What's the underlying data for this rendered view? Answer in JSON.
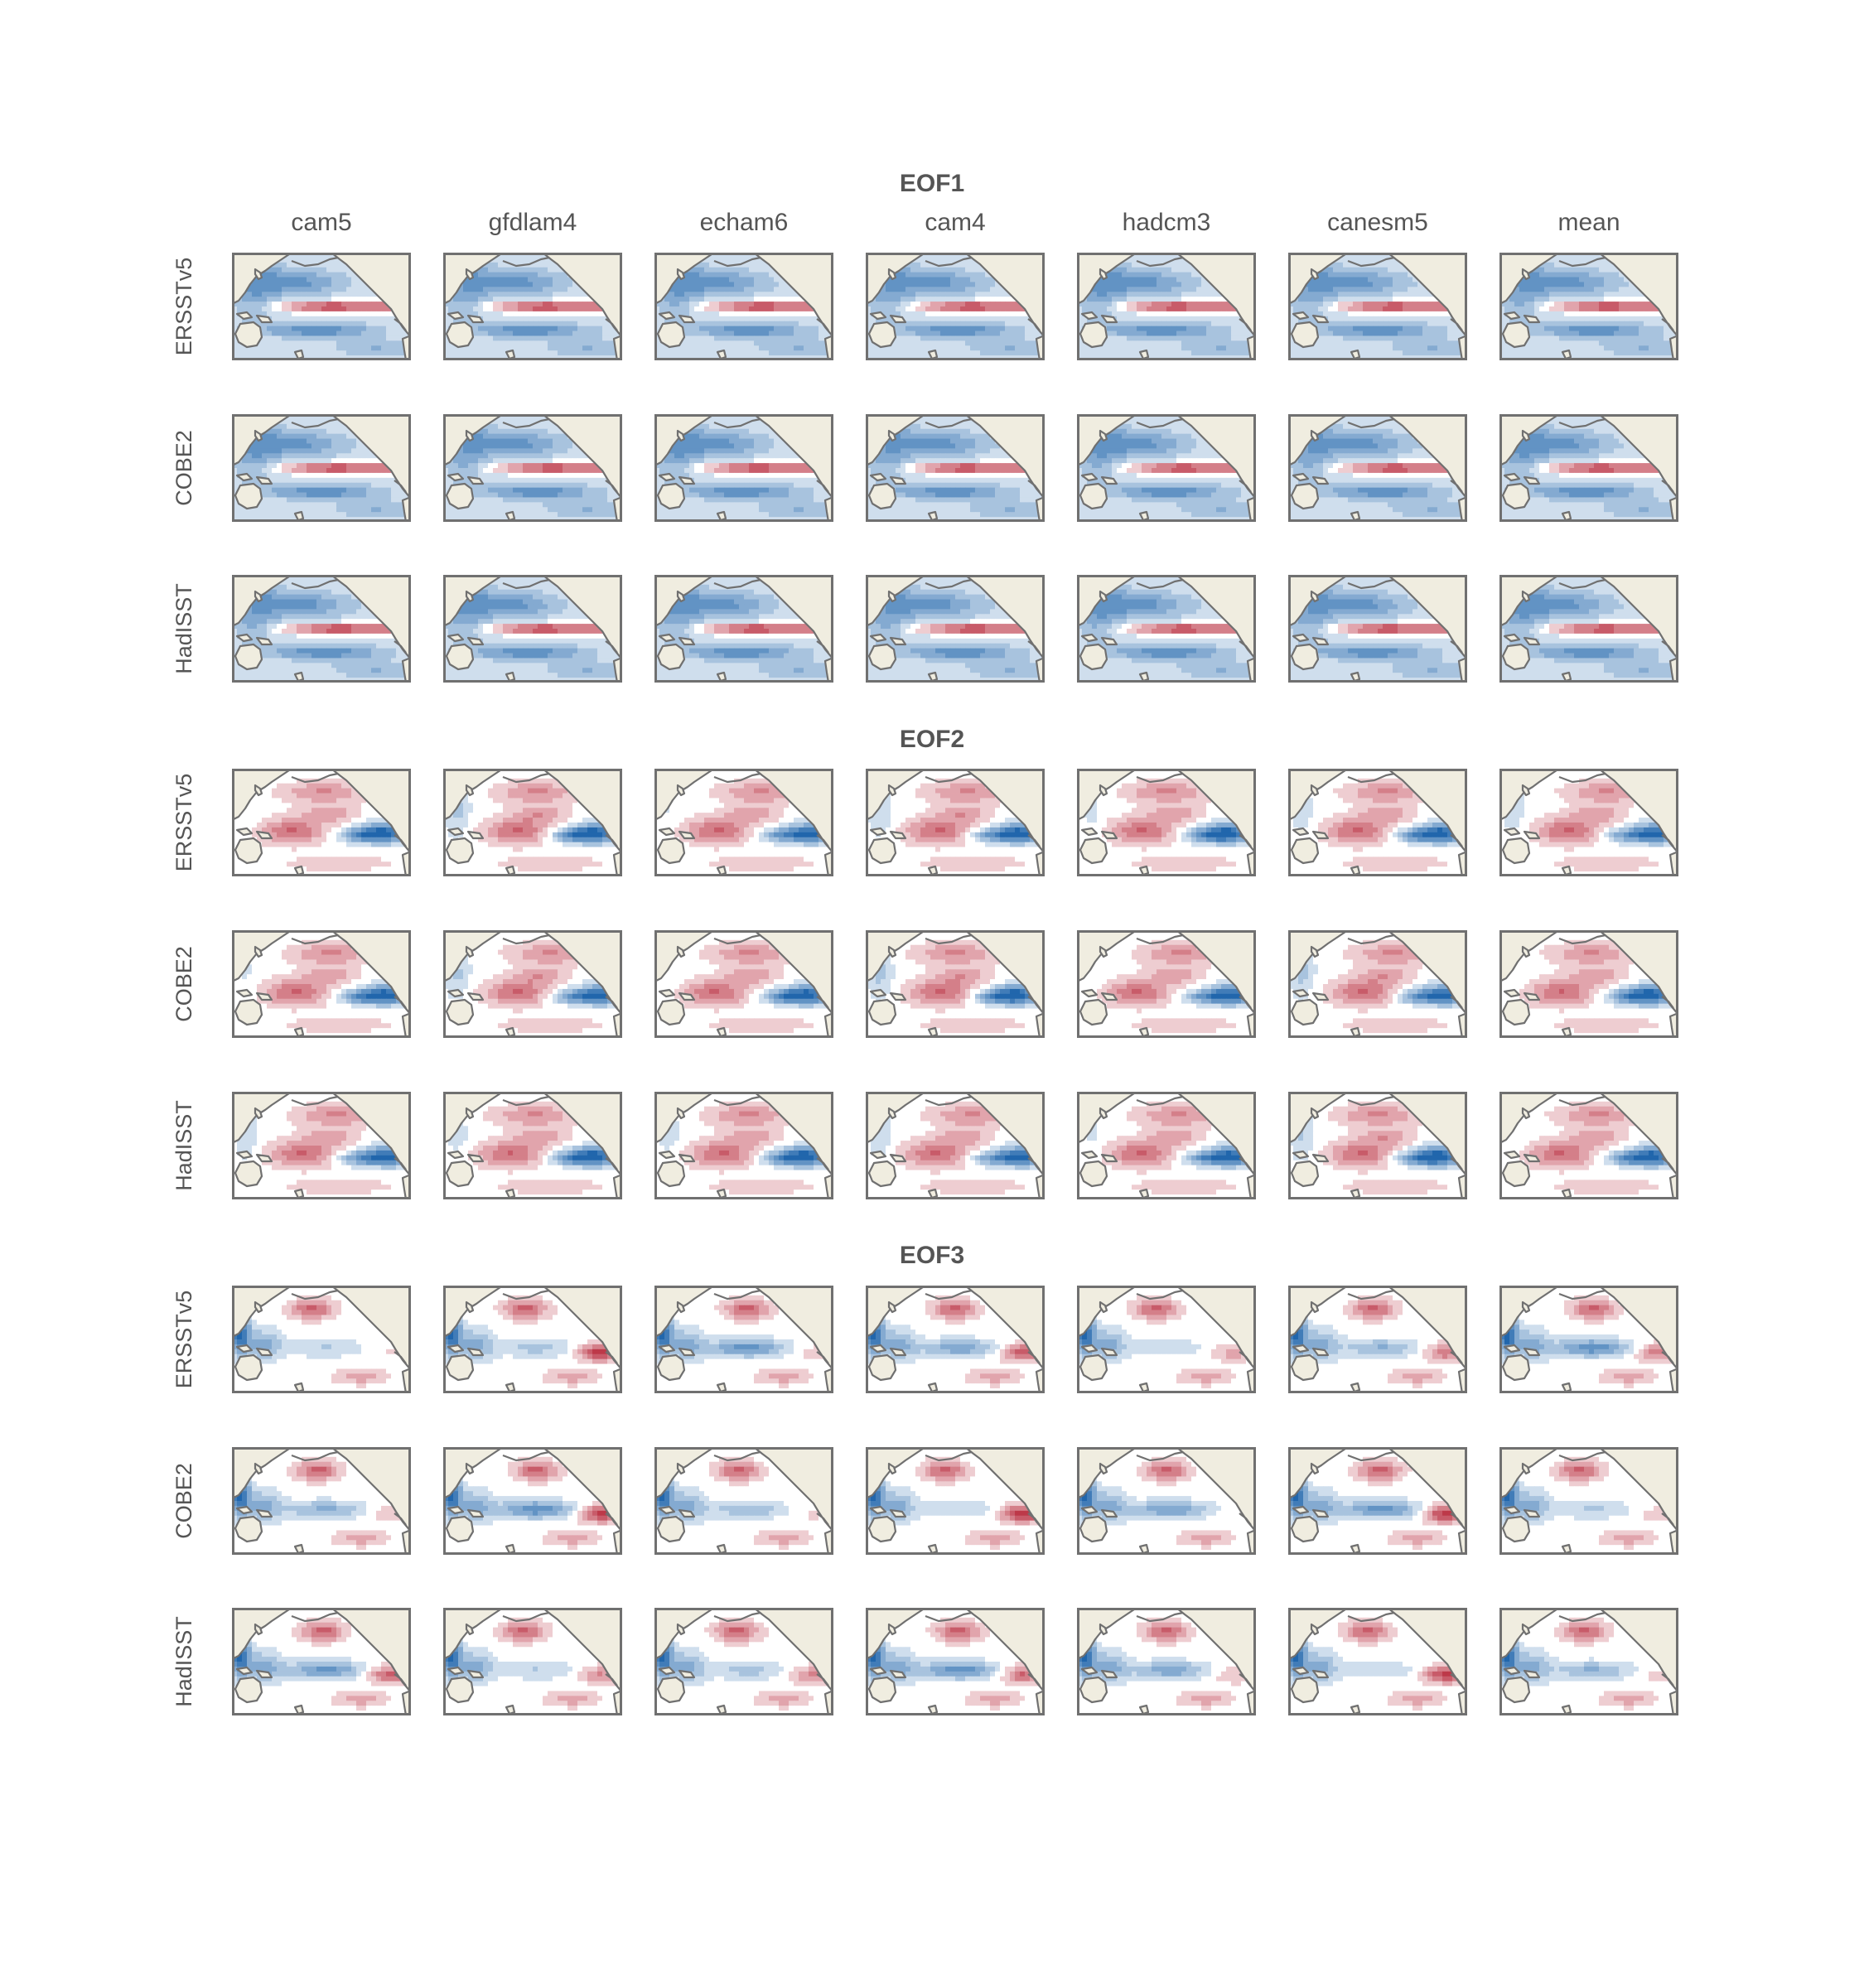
{
  "chart_data": {
    "type": "heatmap",
    "description_kind": "small-multiple EOF spatial maps (tropical Pacific SST)",
    "columns": [
      "cam5",
      "gfdlam4",
      "echam6",
      "cam4",
      "hadcm3",
      "canesm5",
      "mean"
    ],
    "rows": [
      "ERSSTv5",
      "COBE2",
      "HadISST"
    ],
    "eofs": [
      {
        "title": "EOF1",
        "pattern": "el-nino-warm-tongue"
      },
      {
        "title": "EOF2",
        "pattern": "east-west-dipole"
      },
      {
        "title": "EOF3",
        "pattern": "western-pacific-tripole"
      }
    ],
    "colormap": {
      "negative": "#2166ac",
      "neutral": "#ffffff",
      "positive": "#b2182b"
    },
    "land_color": "#f0ede0",
    "coast_color": "#707070",
    "frame_color": "#707070"
  }
}
